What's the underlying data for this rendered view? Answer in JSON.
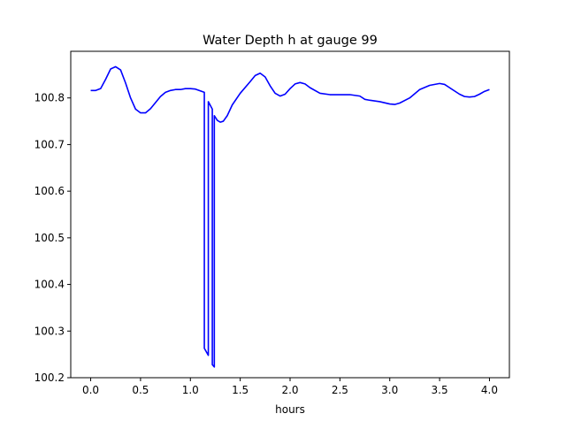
{
  "chart_data": {
    "type": "line",
    "title": "Water Depth h at gauge 99",
    "xlabel": "hours",
    "ylabel": "",
    "xlim": [
      -0.2,
      4.2
    ],
    "ylim": [
      100.2,
      100.9
    ],
    "xticks": [
      0.0,
      0.5,
      1.0,
      1.5,
      2.0,
      2.5,
      3.0,
      3.5,
      4.0
    ],
    "xtick_labels": [
      "0.0",
      "0.5",
      "1.0",
      "1.5",
      "2.0",
      "2.5",
      "3.0",
      "3.5",
      "4.0"
    ],
    "yticks": [
      100.2,
      100.3,
      100.4,
      100.5,
      100.6,
      100.7,
      100.8
    ],
    "ytick_labels": [
      "100.2",
      "100.3",
      "100.4",
      "100.5",
      "100.6",
      "100.7",
      "100.8"
    ],
    "grid": false,
    "series": [
      {
        "color": "#0000ff",
        "points": [
          [
            0.0,
            100.816
          ],
          [
            0.05,
            100.816
          ],
          [
            0.1,
            100.82
          ],
          [
            0.15,
            100.84
          ],
          [
            0.2,
            100.862
          ],
          [
            0.25,
            100.867
          ],
          [
            0.3,
            100.86
          ],
          [
            0.35,
            100.832
          ],
          [
            0.4,
            100.8
          ],
          [
            0.45,
            100.776
          ],
          [
            0.5,
            100.768
          ],
          [
            0.55,
            100.768
          ],
          [
            0.6,
            100.777
          ],
          [
            0.65,
            100.79
          ],
          [
            0.7,
            100.803
          ],
          [
            0.75,
            100.812
          ],
          [
            0.8,
            100.816
          ],
          [
            0.85,
            100.818
          ],
          [
            0.9,
            100.818
          ],
          [
            0.95,
            100.82
          ],
          [
            1.0,
            100.82
          ],
          [
            1.05,
            100.819
          ],
          [
            1.1,
            100.815
          ],
          [
            1.14,
            100.812
          ],
          [
            1.14,
            100.263
          ],
          [
            1.18,
            100.248
          ],
          [
            1.18,
            100.792
          ],
          [
            1.22,
            100.776
          ],
          [
            1.22,
            100.228
          ],
          [
            1.24,
            100.223
          ],
          [
            1.24,
            100.762
          ],
          [
            1.27,
            100.752
          ],
          [
            1.3,
            100.748
          ],
          [
            1.33,
            100.75
          ],
          [
            1.37,
            100.762
          ],
          [
            1.42,
            100.785
          ],
          [
            1.5,
            100.81
          ],
          [
            1.6,
            100.835
          ],
          [
            1.65,
            100.848
          ],
          [
            1.7,
            100.853
          ],
          [
            1.75,
            100.845
          ],
          [
            1.8,
            100.826
          ],
          [
            1.85,
            100.81
          ],
          [
            1.9,
            100.804
          ],
          [
            1.95,
            100.808
          ],
          [
            2.0,
            100.82
          ],
          [
            2.05,
            100.83
          ],
          [
            2.1,
            100.833
          ],
          [
            2.15,
            100.83
          ],
          [
            2.2,
            100.822
          ],
          [
            2.3,
            100.81
          ],
          [
            2.4,
            100.807
          ],
          [
            2.5,
            100.807
          ],
          [
            2.6,
            100.807
          ],
          [
            2.7,
            100.804
          ],
          [
            2.75,
            100.797
          ],
          [
            2.8,
            100.795
          ],
          [
            2.9,
            100.792
          ],
          [
            3.0,
            100.787
          ],
          [
            3.05,
            100.786
          ],
          [
            3.1,
            100.789
          ],
          [
            3.2,
            100.8
          ],
          [
            3.3,
            100.818
          ],
          [
            3.4,
            100.827
          ],
          [
            3.5,
            100.831
          ],
          [
            3.55,
            100.829
          ],
          [
            3.6,
            100.822
          ],
          [
            3.7,
            100.808
          ],
          [
            3.75,
            100.803
          ],
          [
            3.8,
            100.802
          ],
          [
            3.85,
            100.803
          ],
          [
            3.9,
            100.808
          ],
          [
            3.95,
            100.814
          ],
          [
            4.0,
            100.818
          ]
        ]
      }
    ]
  }
}
